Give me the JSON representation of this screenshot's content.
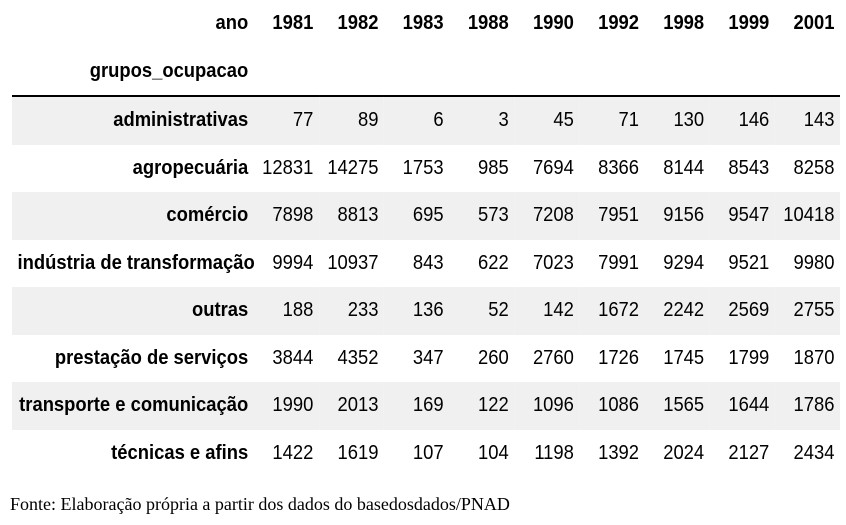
{
  "table": {
    "column_axis_name": "ano",
    "index_name": "grupos_ocupacao",
    "columns": [
      "1981",
      "1982",
      "1983",
      "1988",
      "1990",
      "1992",
      "1998",
      "1999",
      "2001"
    ],
    "rows": [
      {
        "label": "administrativas",
        "values": [
          "77",
          "89",
          "6",
          "3",
          "45",
          "71",
          "130",
          "146",
          "143"
        ]
      },
      {
        "label": "agropecuária",
        "values": [
          "12831",
          "14275",
          "1753",
          "985",
          "7694",
          "8366",
          "8144",
          "8543",
          "8258"
        ]
      },
      {
        "label": "comércio",
        "values": [
          "7898",
          "8813",
          "695",
          "573",
          "7208",
          "7951",
          "9156",
          "9547",
          "10418"
        ]
      },
      {
        "label": "indústria de transformação",
        "values": [
          "9994",
          "10937",
          "843",
          "622",
          "7023",
          "7991",
          "9294",
          "9521",
          "9980"
        ]
      },
      {
        "label": "outras",
        "values": [
          "188",
          "233",
          "136",
          "52",
          "142",
          "1672",
          "2242",
          "2569",
          "2755"
        ]
      },
      {
        "label": "prestação de serviços",
        "values": [
          "3844",
          "4352",
          "347",
          "260",
          "2760",
          "1726",
          "1745",
          "1799",
          "1870"
        ]
      },
      {
        "label": "transporte e comunicação",
        "values": [
          "1990",
          "2013",
          "169",
          "122",
          "1096",
          "1086",
          "1565",
          "1644",
          "1786"
        ]
      },
      {
        "label": "técnicas e afins",
        "values": [
          "1422",
          "1619",
          "107",
          "104",
          "1198",
          "1392",
          "2024",
          "2127",
          "2434"
        ]
      }
    ]
  },
  "footnote": "Fonte: Elaboração própria a partir dos dados do basedosdados/PNAD"
}
